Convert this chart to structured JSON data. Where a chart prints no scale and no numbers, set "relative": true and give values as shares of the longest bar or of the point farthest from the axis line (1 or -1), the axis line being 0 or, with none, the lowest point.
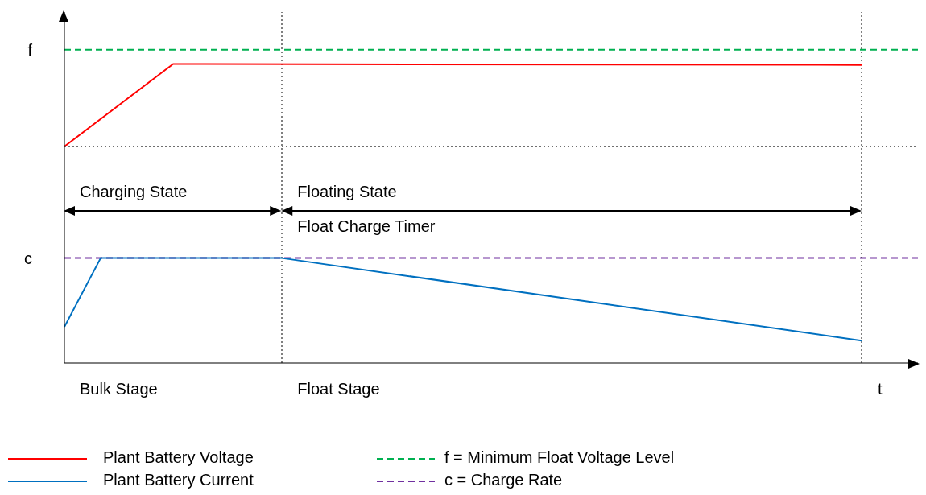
{
  "chart_data": {
    "type": "line",
    "relative": true,
    "legend": "bottom",
    "marker": "none",
    "line_style": "solid",
    "categories": [
      null,
      null,
      null,
      null,
      null,
      null,
      null,
      null,
      null,
      null,
      null,
      null,
      null,
      null,
      null,
      null,
      null,
      null,
      null,
      null,
      null,
      null,
      null
    ],
    "series": [
      {
        "name": "Plant Battery Voltage",
        "color": "#ff0000",
        "values": [
          0.724,
          null,
          null,
          1,
          null,
          null,
          null,
          null,
          null,
          null,
          null,
          null,
          null,
          null,
          null,
          null,
          null,
          null,
          null,
          null,
          null,
          null,
          0.997
        ]
      },
      {
        "name": "Plant Battery Current",
        "color": "#0070c0",
        "values": [
          0.121,
          0.351,
          null,
          null,
          null,
          null,
          0.351,
          null,
          null,
          null,
          null,
          null,
          null,
          null,
          null,
          null,
          null,
          null,
          null,
          null,
          null,
          null,
          0.075
        ]
      }
    ],
    "ref_lines": [
      {
        "axis": "y",
        "value": 1.048,
        "label": "f",
        "color": "#00b050",
        "line_style": "dashed"
      },
      {
        "axis": "y",
        "value": 0.351,
        "label": "c",
        "color": "#7030a0",
        "line_style": "dashed"
      },
      {
        "axis": "y",
        "value": 0.724,
        "color": "#000000",
        "line_style": "dotted"
      }
    ],
    "annotations": [
      "Charging State",
      "Floating State",
      "Float Charge Timer",
      "Bulk Stage",
      "Float Stage",
      "t",
      "f = Minimum Float Voltage Level",
      "c = Charge Rate"
    ]
  }
}
